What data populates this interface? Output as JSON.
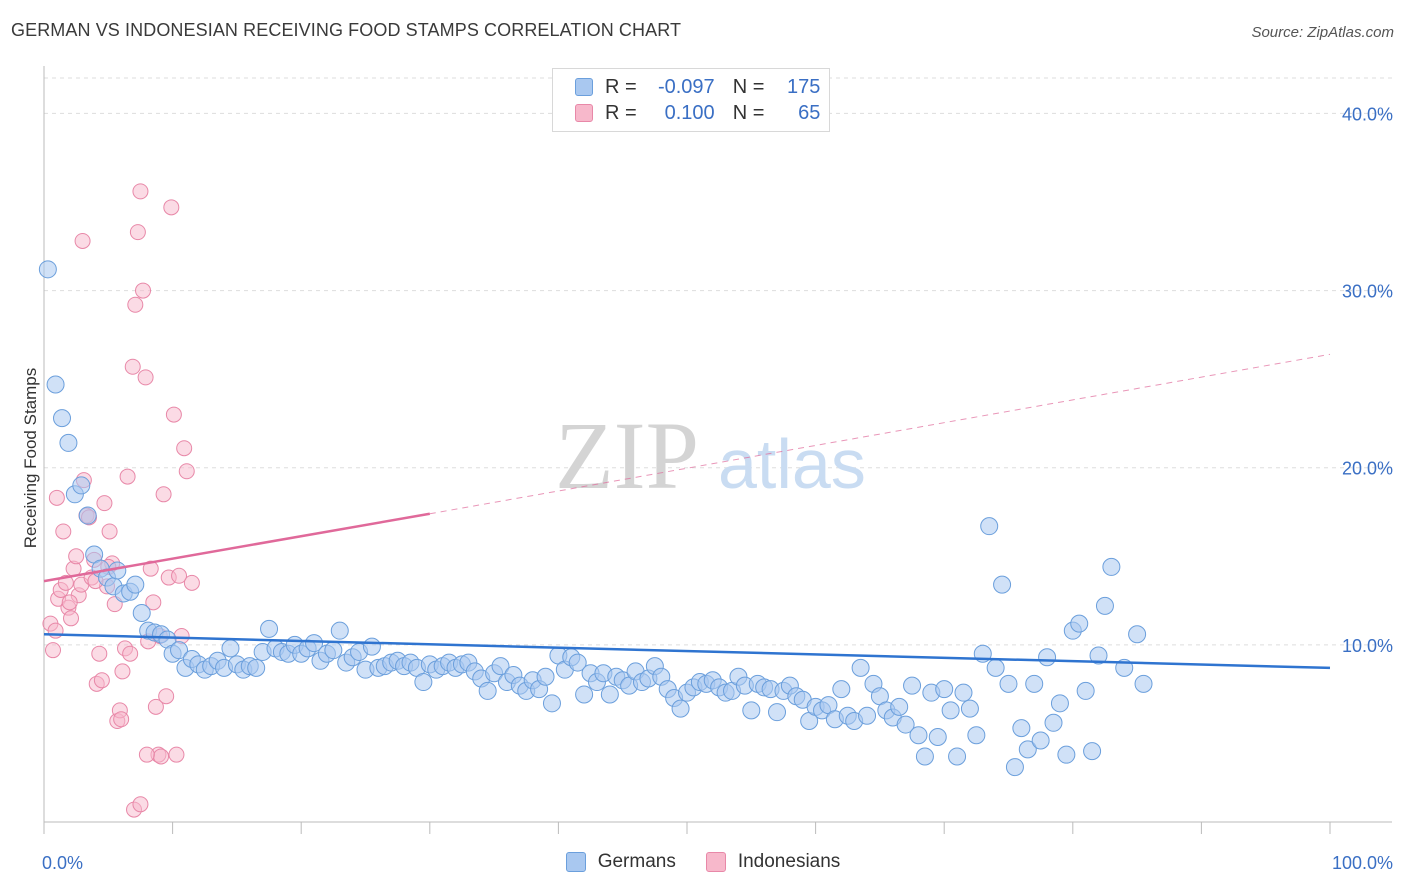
{
  "header": {
    "title": "GERMAN VS INDONESIAN RECEIVING FOOD STAMPS CORRELATION CHART",
    "source": "Source: ZipAtlas.com"
  },
  "watermark": {
    "zip": "ZIP",
    "atlas": "atlas"
  },
  "legend": {
    "rows": [
      {
        "r_label": "R =",
        "r_value": "-0.097",
        "n_label": "N =",
        "n_value": "175"
      },
      {
        "r_label": "R =",
        "r_value": "0.100",
        "n_label": "N =",
        "n_value": "65"
      }
    ]
  },
  "bottom_legend": {
    "germans": "Germans",
    "indonesians": "Indonesians"
  },
  "colors": {
    "german_fill": "#a9c8f0",
    "german_stroke": "#6b9fdc",
    "german_line": "#2f74d0",
    "indonesian_fill": "#f7b8cb",
    "indonesian_stroke": "#e888a8",
    "indonesian_line": "#e0699a",
    "axis_text": "#3a6fc4",
    "grid": "#dddddd"
  },
  "chart_data": {
    "type": "scatter",
    "title": "GERMAN VS INDONESIAN RECEIVING FOOD STAMPS CORRELATION CHART",
    "xlabel": "",
    "ylabel": "Receiving Food Stamps",
    "xlim": [
      0,
      100
    ],
    "ylim": [
      0,
      42
    ],
    "x_tick_labels": [
      "0.0%",
      "100.0%"
    ],
    "y_ticks": [
      10,
      20,
      30,
      40
    ],
    "y_tick_labels": [
      "10.0%",
      "20.0%",
      "30.0%",
      "40.0%"
    ],
    "grid": true,
    "legend_position": "top-center",
    "series": [
      {
        "name": "Germans",
        "r": -0.097,
        "n": 175,
        "trend": {
          "x": [
            0,
            100
          ],
          "y": [
            10.6,
            8.7
          ]
        },
        "points": [
          [
            0.3,
            31.2
          ],
          [
            0.9,
            24.7
          ],
          [
            1.4,
            22.8
          ],
          [
            1.9,
            21.4
          ],
          [
            2.4,
            18.5
          ],
          [
            2.9,
            19.0
          ],
          [
            3.4,
            17.3
          ],
          [
            3.9,
            15.1
          ],
          [
            4.4,
            14.3
          ],
          [
            4.9,
            13.8
          ],
          [
            5.4,
            13.3
          ],
          [
            5.7,
            14.2
          ],
          [
            6.2,
            12.9
          ],
          [
            6.7,
            13.0
          ],
          [
            7.1,
            13.4
          ],
          [
            7.6,
            11.8
          ],
          [
            8.1,
            10.8
          ],
          [
            8.6,
            10.7
          ],
          [
            9.1,
            10.6
          ],
          [
            9.6,
            10.3
          ],
          [
            10.0,
            9.5
          ],
          [
            10.5,
            9.7
          ],
          [
            11.0,
            8.7
          ],
          [
            11.5,
            9.2
          ],
          [
            12.0,
            8.9
          ],
          [
            12.5,
            8.6
          ],
          [
            13.0,
            8.8
          ],
          [
            13.5,
            9.1
          ],
          [
            14.0,
            8.7
          ],
          [
            14.5,
            9.8
          ],
          [
            15.0,
            8.9
          ],
          [
            15.5,
            8.6
          ],
          [
            16.0,
            8.8
          ],
          [
            16.5,
            8.7
          ],
          [
            17.0,
            9.6
          ],
          [
            17.5,
            10.9
          ],
          [
            18.0,
            9.8
          ],
          [
            18.5,
            9.6
          ],
          [
            19.0,
            9.5
          ],
          [
            19.5,
            10.0
          ],
          [
            20.0,
            9.5
          ],
          [
            20.5,
            9.8
          ],
          [
            21.0,
            10.1
          ],
          [
            21.5,
            9.1
          ],
          [
            22.0,
            9.5
          ],
          [
            22.5,
            9.7
          ],
          [
            23.0,
            10.8
          ],
          [
            23.5,
            9.0
          ],
          [
            24.0,
            9.3
          ],
          [
            24.5,
            9.6
          ],
          [
            25.0,
            8.6
          ],
          [
            25.5,
            9.9
          ],
          [
            26.0,
            8.7
          ],
          [
            26.5,
            8.8
          ],
          [
            27.0,
            9.0
          ],
          [
            27.5,
            9.1
          ],
          [
            28.0,
            8.8
          ],
          [
            28.5,
            9.0
          ],
          [
            29.0,
            8.7
          ],
          [
            29.5,
            7.9
          ],
          [
            30.0,
            8.9
          ],
          [
            30.5,
            8.6
          ],
          [
            31.0,
            8.8
          ],
          [
            31.5,
            9.0
          ],
          [
            32.0,
            8.7
          ],
          [
            32.5,
            8.9
          ],
          [
            33.0,
            9.0
          ],
          [
            33.5,
            8.5
          ],
          [
            34.0,
            8.1
          ],
          [
            34.5,
            7.4
          ],
          [
            35.0,
            8.4
          ],
          [
            35.5,
            8.8
          ],
          [
            36.0,
            7.9
          ],
          [
            36.5,
            8.3
          ],
          [
            37.0,
            7.7
          ],
          [
            37.5,
            7.4
          ],
          [
            38.0,
            8.0
          ],
          [
            38.5,
            7.5
          ],
          [
            39.0,
            8.2
          ],
          [
            39.5,
            6.7
          ],
          [
            40.0,
            9.4
          ],
          [
            40.5,
            8.6
          ],
          [
            41.0,
            9.3
          ],
          [
            41.5,
            9.0
          ],
          [
            42.0,
            7.2
          ],
          [
            42.5,
            8.4
          ],
          [
            43.0,
            7.9
          ],
          [
            43.5,
            8.4
          ],
          [
            44.0,
            7.2
          ],
          [
            44.5,
            8.2
          ],
          [
            45.0,
            8.0
          ],
          [
            45.5,
            7.7
          ],
          [
            46.0,
            8.5
          ],
          [
            46.5,
            7.9
          ],
          [
            47.0,
            8.1
          ],
          [
            47.5,
            8.8
          ],
          [
            48.0,
            8.2
          ],
          [
            48.5,
            7.5
          ],
          [
            49.0,
            7.0
          ],
          [
            49.5,
            6.4
          ],
          [
            50.0,
            7.3
          ],
          [
            50.5,
            7.6
          ],
          [
            51.0,
            7.9
          ],
          [
            51.5,
            7.8
          ],
          [
            52.0,
            8.0
          ],
          [
            52.5,
            7.6
          ],
          [
            53.0,
            7.3
          ],
          [
            53.5,
            7.4
          ],
          [
            54.0,
            8.2
          ],
          [
            54.5,
            7.7
          ],
          [
            55.0,
            6.3
          ],
          [
            55.5,
            7.8
          ],
          [
            56.0,
            7.6
          ],
          [
            56.5,
            7.5
          ],
          [
            57.0,
            6.2
          ],
          [
            57.5,
            7.4
          ],
          [
            58.0,
            7.7
          ],
          [
            58.5,
            7.1
          ],
          [
            59.0,
            6.9
          ],
          [
            59.5,
            5.7
          ],
          [
            60.0,
            6.5
          ],
          [
            60.5,
            6.3
          ],
          [
            61.0,
            6.6
          ],
          [
            61.5,
            5.8
          ],
          [
            62.0,
            7.5
          ],
          [
            62.5,
            6.0
          ],
          [
            63.0,
            5.7
          ],
          [
            63.5,
            8.7
          ],
          [
            64.0,
            6.0
          ],
          [
            64.5,
            7.8
          ],
          [
            65.0,
            7.1
          ],
          [
            65.5,
            6.3
          ],
          [
            66.0,
            5.9
          ],
          [
            66.5,
            6.5
          ],
          [
            67.0,
            5.5
          ],
          [
            67.5,
            7.7
          ],
          [
            68.0,
            4.9
          ],
          [
            68.5,
            3.7
          ],
          [
            69.0,
            7.3
          ],
          [
            69.5,
            4.8
          ],
          [
            70.0,
            7.5
          ],
          [
            70.5,
            6.3
          ],
          [
            71.0,
            3.7
          ],
          [
            71.5,
            7.3
          ],
          [
            72.0,
            6.4
          ],
          [
            72.5,
            4.9
          ],
          [
            73.0,
            9.5
          ],
          [
            73.5,
            16.7
          ],
          [
            74.0,
            8.7
          ],
          [
            74.5,
            13.4
          ],
          [
            75.0,
            7.8
          ],
          [
            75.5,
            3.1
          ],
          [
            76.0,
            5.3
          ],
          [
            76.5,
            4.1
          ],
          [
            77.0,
            7.8
          ],
          [
            77.5,
            4.6
          ],
          [
            78.0,
            9.3
          ],
          [
            78.5,
            5.6
          ],
          [
            79.0,
            6.7
          ],
          [
            79.5,
            3.8
          ],
          [
            80.0,
            10.8
          ],
          [
            80.5,
            11.2
          ],
          [
            81.0,
            7.4
          ],
          [
            81.5,
            4.0
          ],
          [
            82.0,
            9.4
          ],
          [
            82.5,
            12.2
          ],
          [
            83.0,
            14.4
          ],
          [
            84.0,
            8.7
          ],
          [
            85.0,
            10.6
          ],
          [
            85.5,
            7.8
          ]
        ]
      },
      {
        "name": "Indonesians",
        "r": 0.1,
        "n": 65,
        "trend": {
          "x": [
            0,
            30
          ],
          "y": [
            13.6,
            17.4
          ],
          "dashed_extension_to": [
            100,
            26.4
          ]
        },
        "points": [
          [
            0.5,
            11.2
          ],
          [
            0.7,
            9.7
          ],
          [
            0.9,
            10.8
          ],
          [
            1.1,
            12.6
          ],
          [
            1.3,
            13.1
          ],
          [
            1.5,
            16.4
          ],
          [
            1.7,
            13.5
          ],
          [
            1.9,
            12.1
          ],
          [
            2.1,
            11.5
          ],
          [
            2.3,
            14.3
          ],
          [
            2.5,
            15.0
          ],
          [
            2.7,
            12.8
          ],
          [
            2.9,
            13.4
          ],
          [
            3.1,
            19.3
          ],
          [
            3.3,
            17.3
          ],
          [
            3.5,
            17.2
          ],
          [
            3.7,
            13.8
          ],
          [
            3.9,
            14.8
          ],
          [
            4.1,
            7.8
          ],
          [
            4.3,
            9.5
          ],
          [
            4.5,
            8.0
          ],
          [
            4.7,
            18.0
          ],
          [
            4.9,
            13.3
          ],
          [
            5.1,
            16.4
          ],
          [
            5.3,
            14.6
          ],
          [
            5.5,
            12.3
          ],
          [
            5.7,
            5.7
          ],
          [
            5.9,
            6.3
          ],
          [
            6.1,
            8.5
          ],
          [
            6.3,
            9.8
          ],
          [
            6.5,
            19.5
          ],
          [
            6.7,
            9.5
          ],
          [
            6.9,
            25.7
          ],
          [
            7.1,
            29.2
          ],
          [
            7.3,
            33.3
          ],
          [
            7.5,
            35.6
          ],
          [
            7.7,
            30.0
          ],
          [
            7.9,
            25.1
          ],
          [
            8.1,
            10.2
          ],
          [
            8.3,
            14.3
          ],
          [
            8.5,
            12.4
          ],
          [
            8.7,
            6.5
          ],
          [
            8.9,
            3.8
          ],
          [
            9.1,
            3.7
          ],
          [
            9.3,
            18.5
          ],
          [
            9.5,
            7.1
          ],
          [
            9.7,
            13.8
          ],
          [
            9.9,
            34.7
          ],
          [
            10.1,
            23.0
          ],
          [
            10.3,
            3.8
          ],
          [
            10.5,
            13.9
          ],
          [
            10.7,
            10.5
          ],
          [
            10.9,
            21.1
          ],
          [
            11.1,
            19.8
          ],
          [
            1.0,
            18.3
          ],
          [
            2.0,
            12.4
          ],
          [
            3.0,
            32.8
          ],
          [
            4.0,
            13.6
          ],
          [
            5.0,
            14.4
          ],
          [
            6.0,
            5.8
          ],
          [
            7.0,
            0.7
          ],
          [
            7.5,
            1.0
          ],
          [
            8.0,
            3.8
          ],
          [
            9.0,
            10.5
          ],
          [
            11.5,
            13.5
          ]
        ]
      }
    ]
  }
}
